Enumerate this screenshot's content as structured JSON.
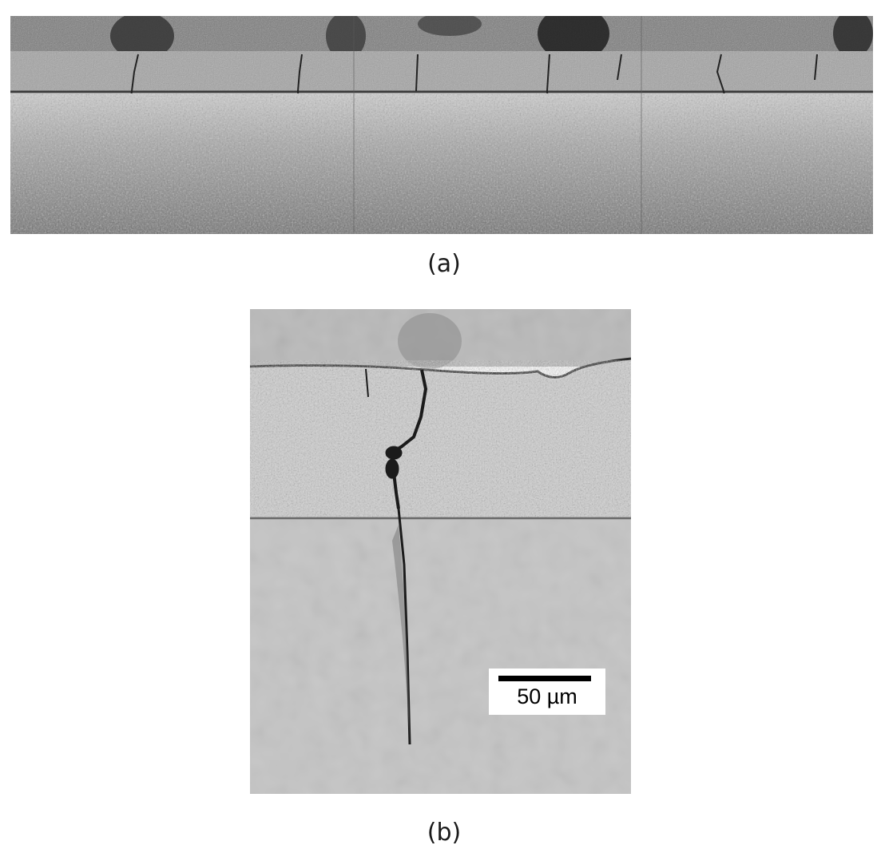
{
  "figure": {
    "panel_a": {
      "caption": "(a)"
    },
    "panel_b": {
      "caption": "(b)",
      "scale_bar_label": "50 µm"
    }
  }
}
